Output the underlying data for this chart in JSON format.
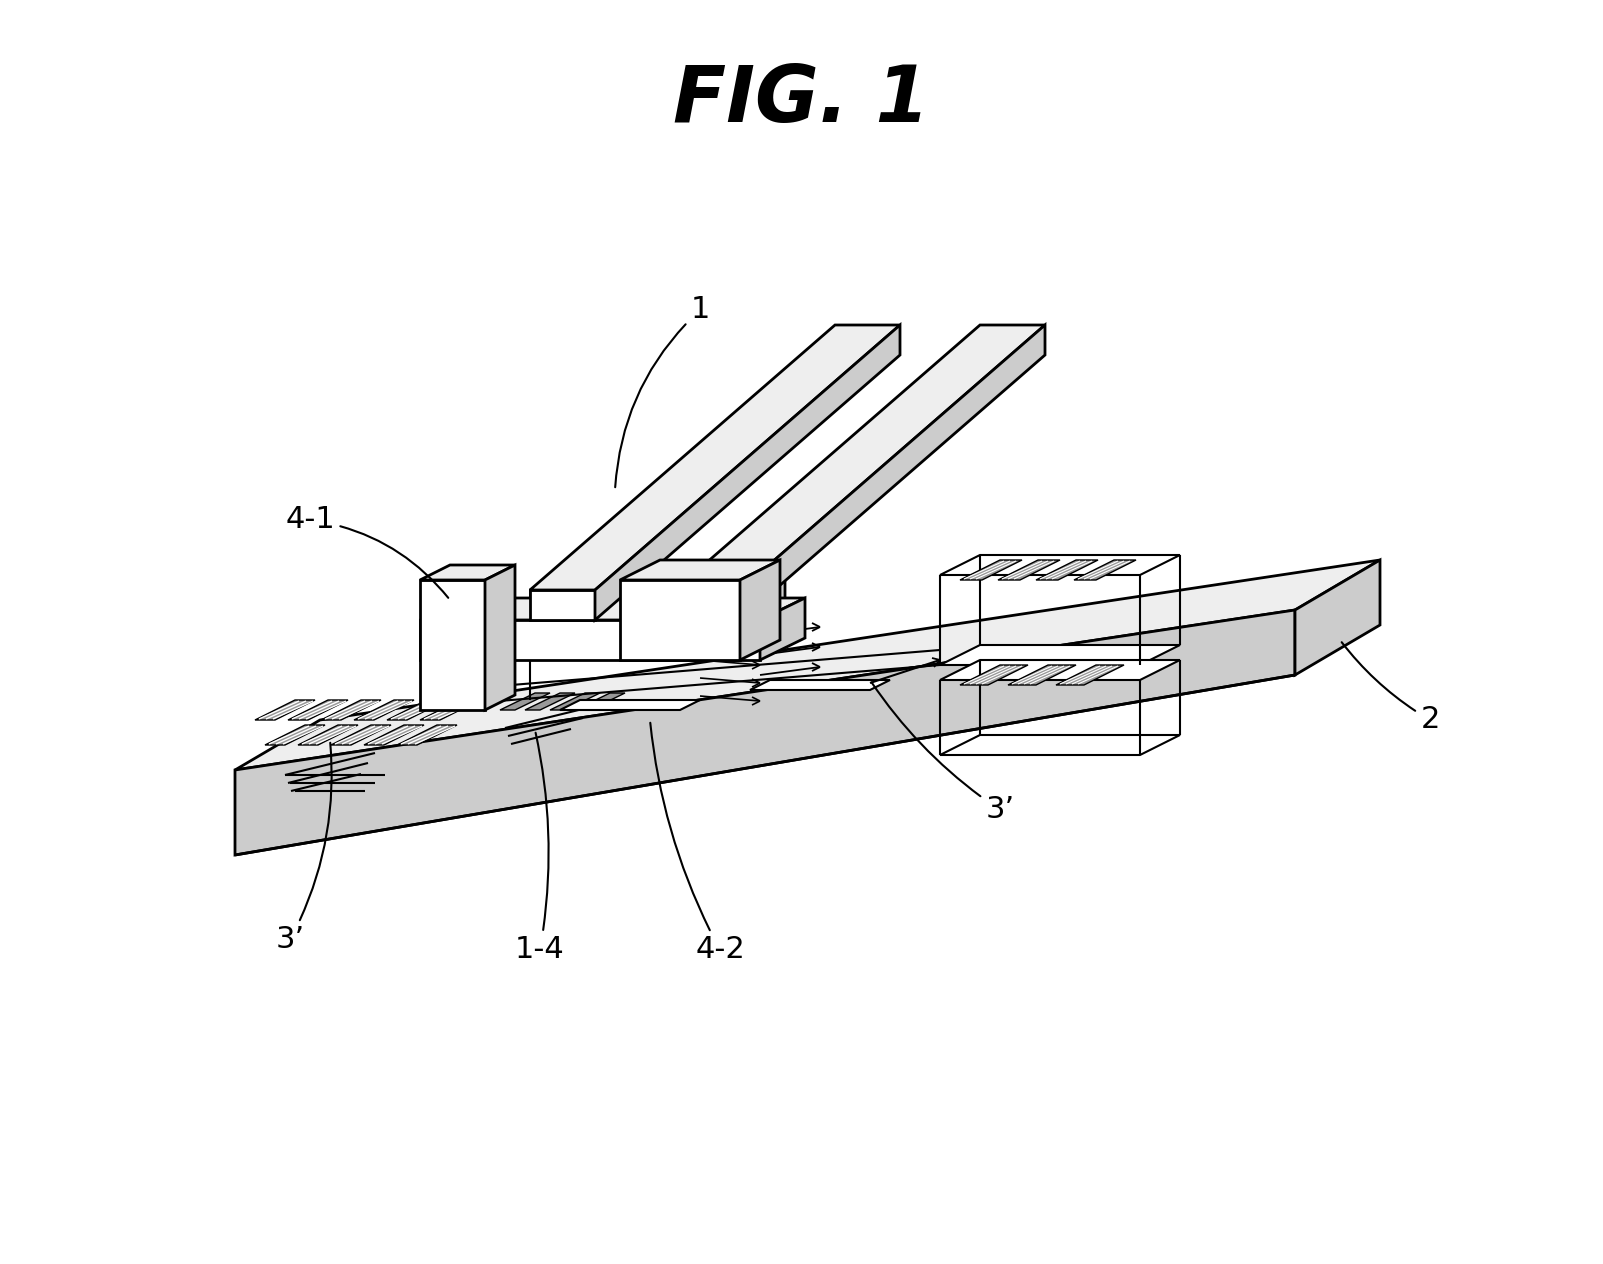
{
  "title": "FIG. 1",
  "title_fontsize": 56,
  "title_style": "italic",
  "title_weight": "bold",
  "bg_color": "#ffffff",
  "line_color": "#000000",
  "fill_white": "#ffffff",
  "fill_light": "#eeeeee",
  "fill_mid": "#cccccc",
  "fill_dark": "#999999",
  "label_fontsize": 22,
  "annotation_linewidth": 1.5
}
